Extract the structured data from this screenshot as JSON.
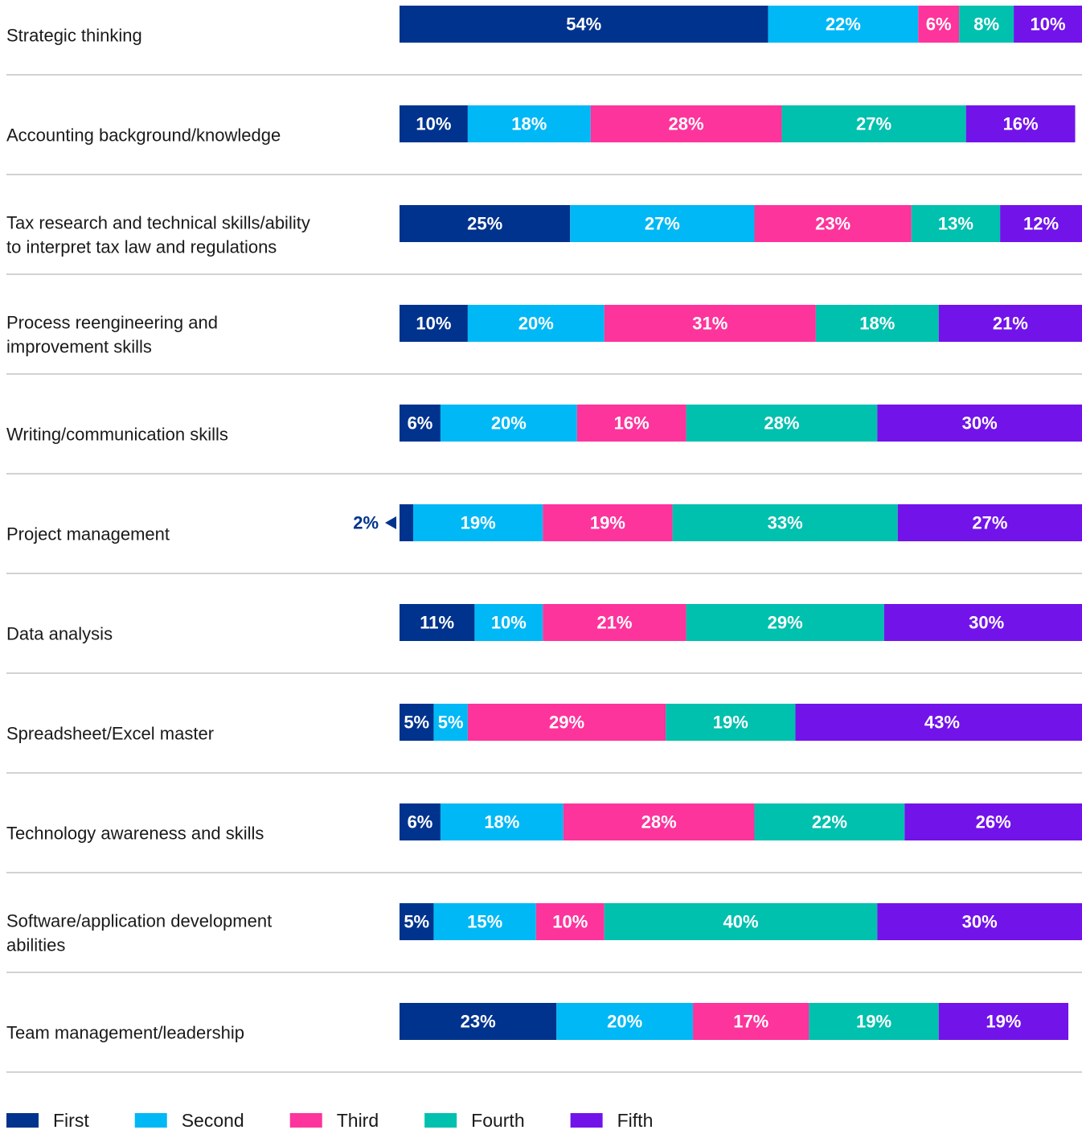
{
  "chart_data": {
    "type": "stacked_barh",
    "categories": [
      "Strategic thinking",
      "Accounting background/knowledge",
      [
        "Tax research and technical skills/ability",
        "to interpret tax law and regulations"
      ],
      [
        "Process reengineering and",
        "improvement skills"
      ],
      "Writing/communication skills",
      "Project management",
      "Data analysis",
      "Spreadsheet/Excel master",
      "Technology awareness and skills",
      [
        "Software/application development",
        "abilities"
      ],
      "Team management/leadership"
    ],
    "xlim": [
      0,
      100
    ],
    "series": [
      {
        "name": "First",
        "color": "#00338d",
        "values": [
          54,
          10,
          25,
          10,
          6,
          2,
          11,
          5,
          6,
          5,
          23
        ],
        "value_labels": [
          "54%",
          "10%",
          "25%",
          "10%",
          "6%",
          "2%",
          "11%",
          "5%",
          "6%",
          "5%",
          "23%"
        ]
      },
      {
        "name": "Second",
        "color": "#00b8f5",
        "values": [
          22,
          18,
          27,
          20,
          20,
          19,
          10,
          5,
          18,
          15,
          20
        ],
        "value_labels": [
          "22%",
          "18%",
          "27%",
          "20%",
          "20%",
          "19%",
          "10%",
          "5%",
          "18%",
          "15%",
          "20%"
        ]
      },
      {
        "name": "Third",
        "color": "#fd349c",
        "values": [
          6,
          28,
          23,
          31,
          16,
          19,
          21,
          29,
          28,
          10,
          17
        ],
        "value_labels": [
          "6%",
          "28%",
          "23%",
          "31%",
          "16%",
          "19%",
          "21%",
          "29%",
          "28%",
          "10%",
          "17%"
        ]
      },
      {
        "name": "Fourth",
        "color": "#00c0ae",
        "values": [
          8,
          27,
          13,
          18,
          28,
          33,
          29,
          19,
          22,
          40,
          19
        ],
        "value_labels": [
          "8%",
          "27%",
          "13%",
          "18%",
          "28%",
          "33%",
          "29%",
          "19%",
          "22%",
          "40%",
          "19%"
        ]
      },
      {
        "name": "Fifth",
        "color": "#7213ea",
        "values": [
          10,
          16,
          12,
          21,
          30,
          27,
          30,
          43,
          26,
          30,
          19
        ],
        "value_labels": [
          "10%",
          "16%",
          "12%",
          "21%",
          "30%",
          "27%",
          "30%",
          "43%",
          "26%",
          "30%",
          "19%"
        ]
      }
    ],
    "legend": "bottom-left"
  }
}
